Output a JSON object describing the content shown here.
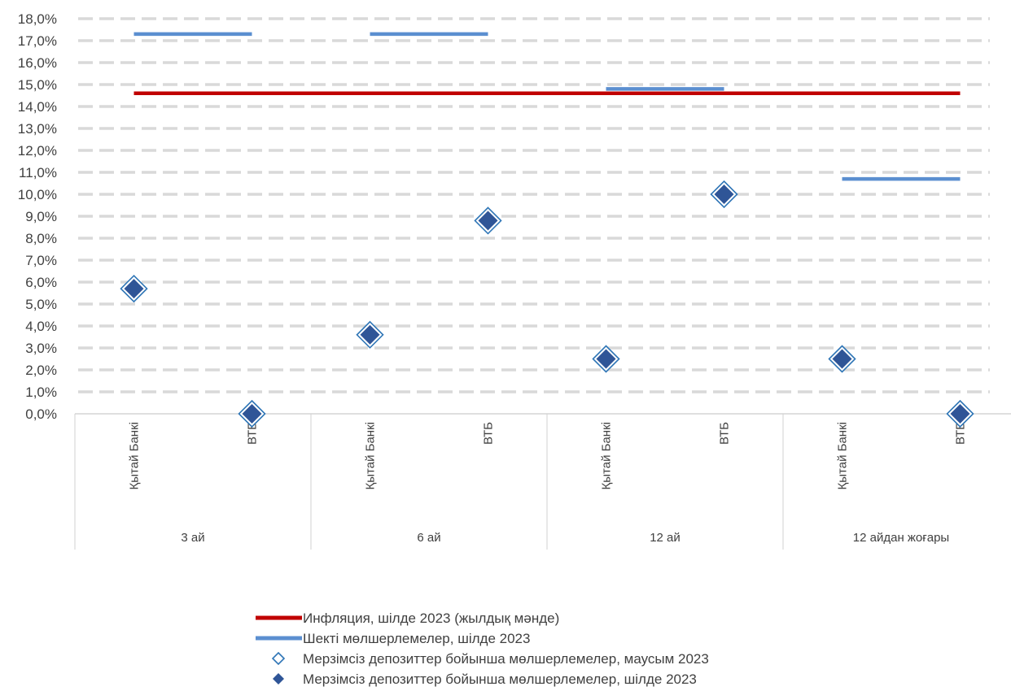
{
  "chart_data": {
    "type": "scatter",
    "y_axis": {
      "min": 0,
      "max": 18,
      "step": 1,
      "tick_labels": [
        "0,0%",
        "1,0%",
        "2,0%",
        "3,0%",
        "4,0%",
        "5,0%",
        "6,0%",
        "7,0%",
        "8,0%",
        "9,0%",
        "10,0%",
        "11,0%",
        "12,0%",
        "13,0%",
        "14,0%",
        "15,0%",
        "16,0%",
        "17,0%",
        "18,0%"
      ]
    },
    "grid": "dashed-horizontal",
    "groups": [
      {
        "label": "3 ай",
        "categories": [
          "Қытай Банкі",
          "ВТБ"
        ]
      },
      {
        "label": "6 ай",
        "categories": [
          "Қытай Банкі",
          "ВТБ"
        ]
      },
      {
        "label": "12 ай",
        "categories": [
          "Қытай Банкі",
          "ВТБ"
        ]
      },
      {
        "label": "12 айдан жоғары",
        "categories": [
          "Қытай Банкі",
          "ВТБ"
        ]
      }
    ],
    "series": [
      {
        "name": "Инфляция, шілде 2023 (жылдық мәнде)",
        "kind": "line",
        "color": "#C00000",
        "values": [
          14.6,
          14.6,
          14.6,
          14.6,
          14.6,
          14.6,
          14.6,
          14.6
        ]
      },
      {
        "name": "Шекті мөлшерлемелер, шілде 2023",
        "kind": "segment-per-group",
        "color": "#5B8FD0",
        "values": [
          17.3,
          17.3,
          14.8,
          10.7
        ]
      },
      {
        "name": "Мерзімсіз депозиттер бойынша мөлшерлемелер, маусым 2023",
        "kind": "marker-open-diamond",
        "color": "#2E75B6",
        "values": [
          5.7,
          0.0,
          3.6,
          8.8,
          2.5,
          10.0,
          2.5,
          0.0
        ]
      },
      {
        "name": "Мерзімсіз депозиттер бойынша мөлшерлемелер, шілде 2023",
        "kind": "marker-filled-diamond",
        "color": "#2F5597",
        "values": [
          5.7,
          0.0,
          3.6,
          8.8,
          2.5,
          10.0,
          2.5,
          0.0
        ]
      }
    ],
    "legend_position": "bottom"
  }
}
